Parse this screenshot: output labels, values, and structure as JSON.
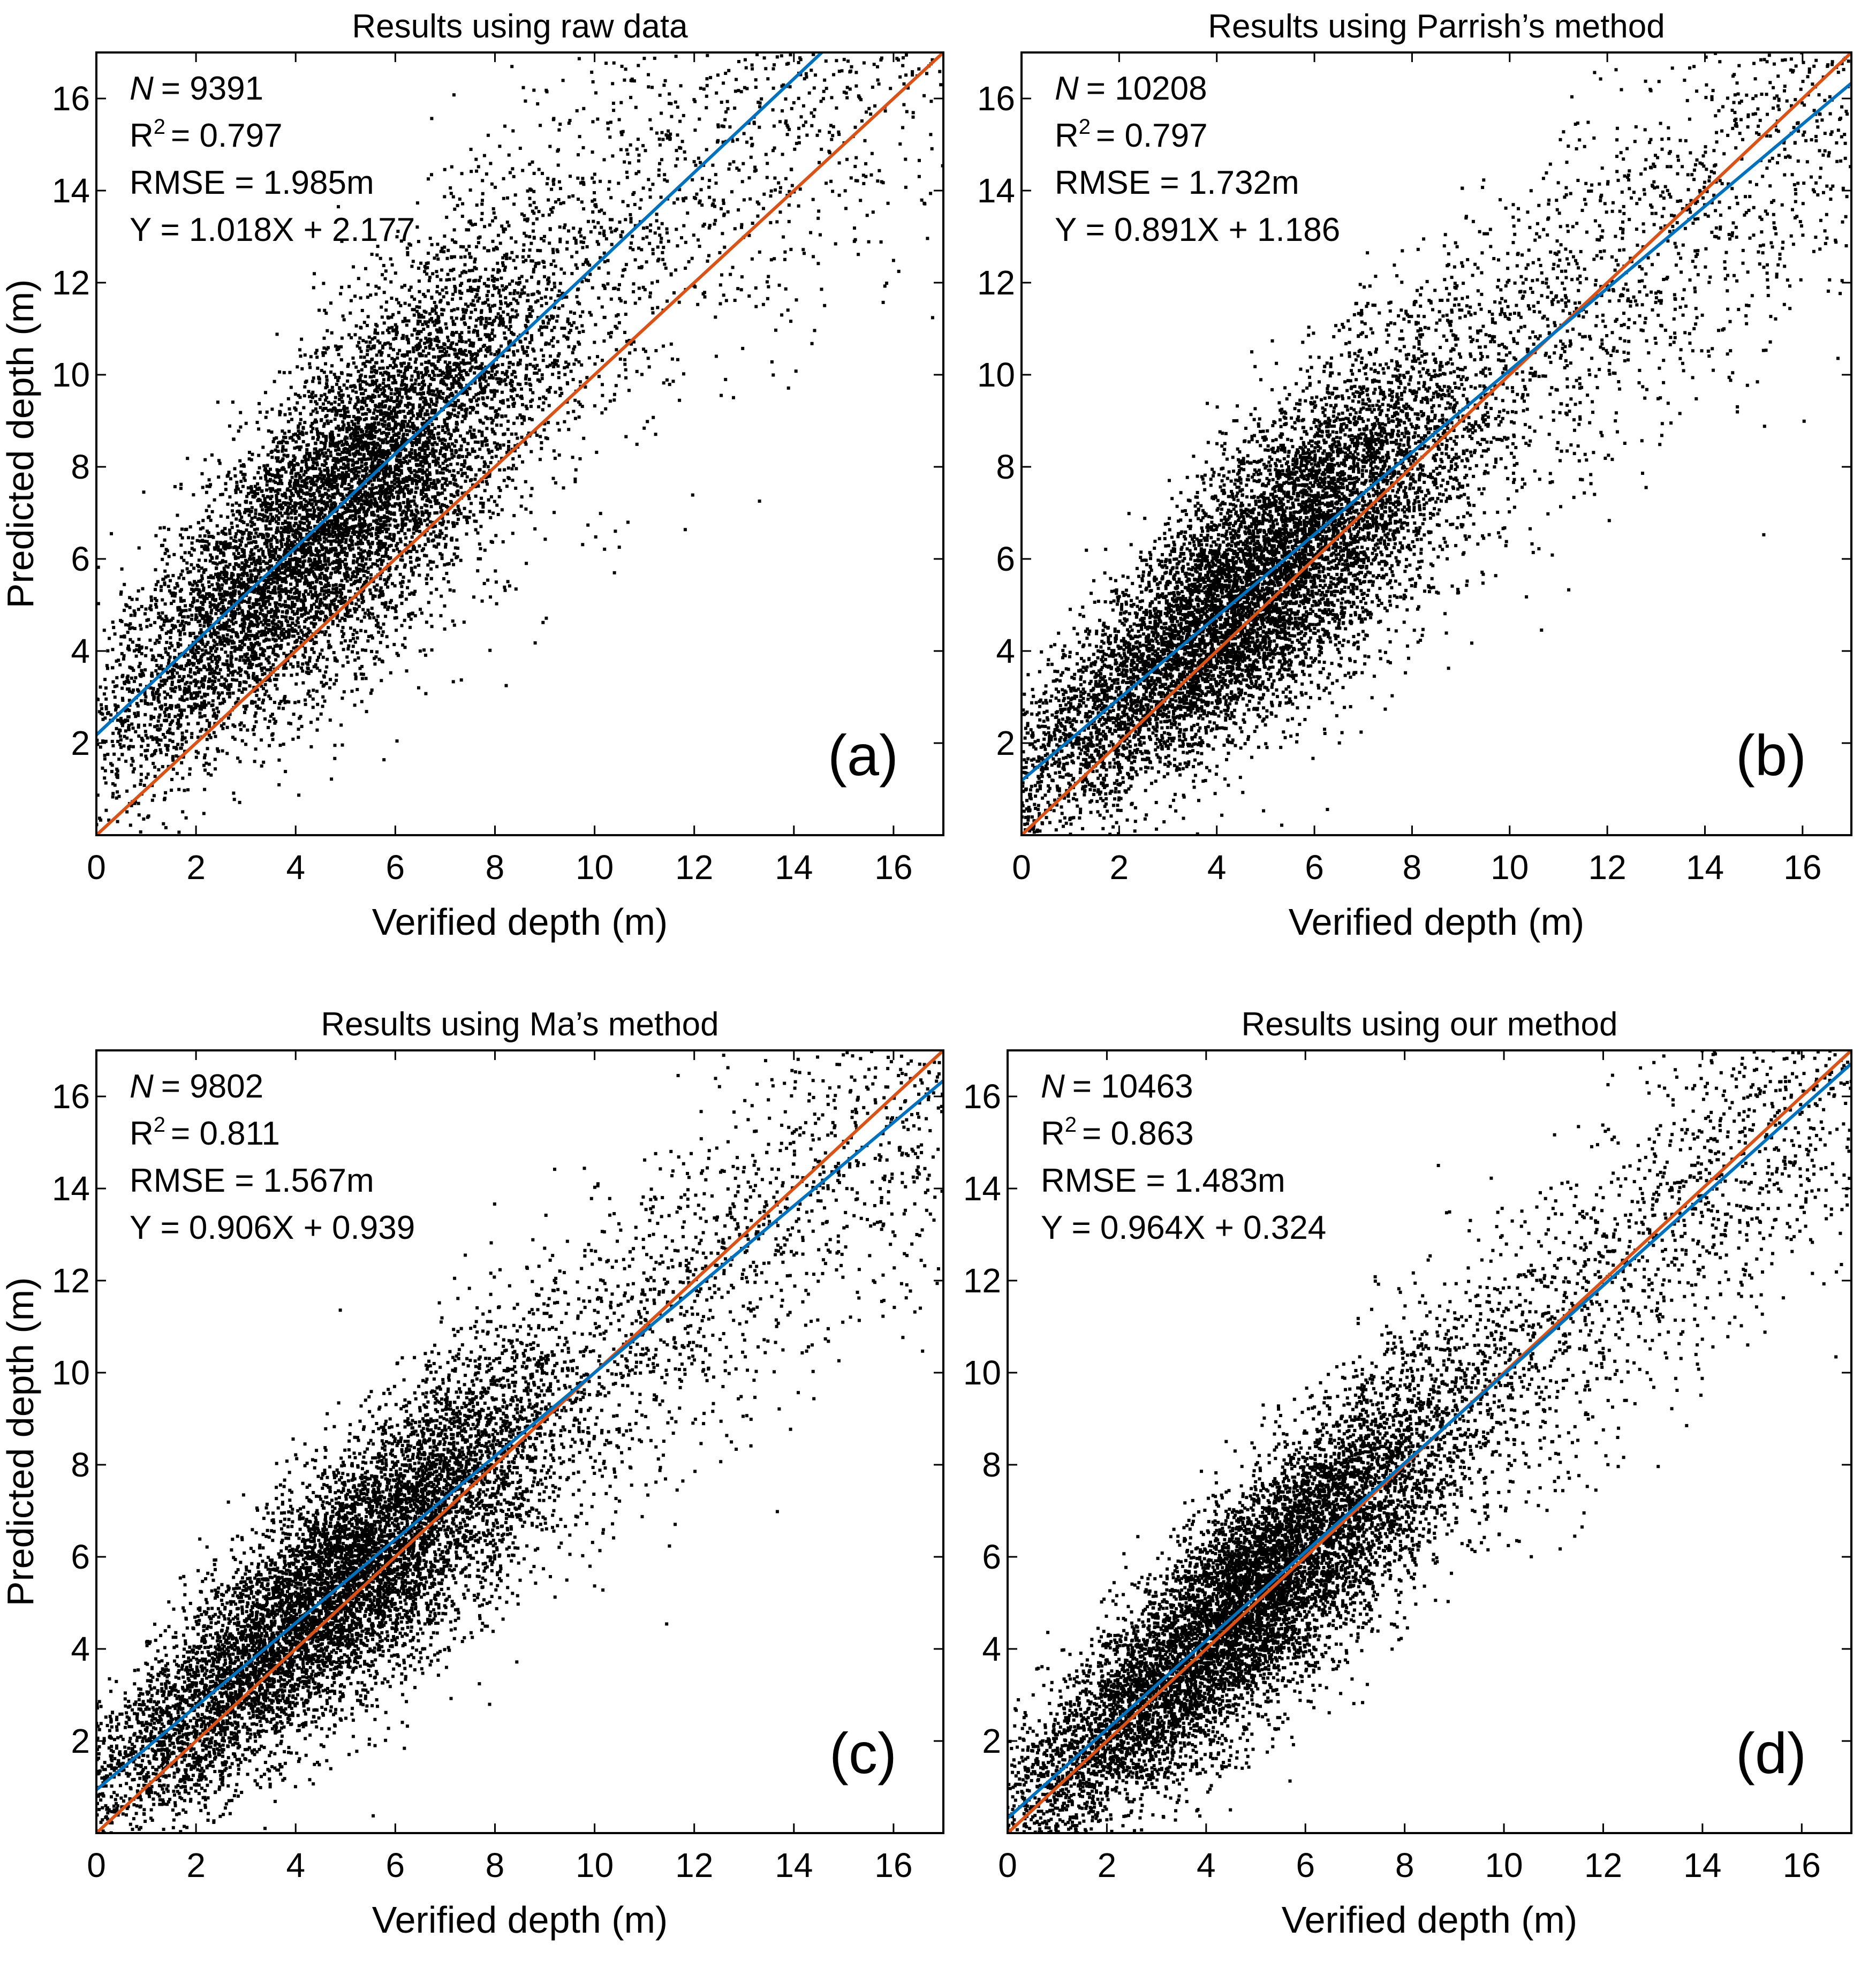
{
  "colors": {
    "fit_line": "#0072BD",
    "one_to_one_line": "#D95319",
    "points": "#000000",
    "axes": "#000000"
  },
  "chart_data": [
    {
      "id": "a",
      "type": "scatter",
      "title": "Results using raw data",
      "panel_label": "(a)",
      "xlabel": "Verified depth (m)",
      "ylabel": "Predicted depth (m)",
      "xlim": [
        0,
        17
      ],
      "ylim": [
        0,
        17
      ],
      "xticks": [
        "0",
        "2",
        "4",
        "6",
        "8",
        "10",
        "12",
        "14",
        "16"
      ],
      "yticks": [
        "2",
        "4",
        "6",
        "8",
        "10",
        "12",
        "14",
        "16"
      ],
      "stats": {
        "n_label": "N",
        "n_value": "= 9391",
        "r2_label": "R",
        "r2_exp": "2",
        "r2_value": "= 0.797",
        "rmse": "RMSE = 1.985m",
        "equation": "Y = 1.018X + 2.177"
      },
      "fit": {
        "slope": 1.018,
        "intercept": 2.177
      },
      "reference": {
        "slope": 1,
        "intercept": 0
      },
      "n_points": 9391,
      "scatter": {
        "slope": 1.018,
        "intercept": 2.177,
        "spread": 2.0
      }
    },
    {
      "id": "b",
      "type": "scatter",
      "title": "Results using Parrish’s method",
      "panel_label": "(b)",
      "xlabel": "Verified depth (m)",
      "ylabel": "",
      "xlim": [
        0,
        17
      ],
      "ylim": [
        0,
        17
      ],
      "xticks": [
        "0",
        "2",
        "4",
        "6",
        "8",
        "10",
        "12",
        "14",
        "16"
      ],
      "yticks": [
        "2",
        "4",
        "6",
        "8",
        "10",
        "12",
        "14",
        "16"
      ],
      "stats": {
        "n_label": "N",
        "n_value": "= 10208",
        "r2_label": "R",
        "r2_exp": "2",
        "r2_value": "= 0.797",
        "rmse": "RMSE = 1.732m",
        "equation": "Y = 0.891X + 1.186"
      },
      "fit": {
        "slope": 0.891,
        "intercept": 1.186
      },
      "reference": {
        "slope": 1,
        "intercept": 0
      },
      "n_points": 10208,
      "scatter": {
        "slope": 0.891,
        "intercept": 1.186,
        "spread": 1.7
      }
    },
    {
      "id": "c",
      "type": "scatter",
      "title": "Results using Ma’s method",
      "panel_label": "(c)",
      "xlabel": "Verified depth (m)",
      "ylabel": "Predicted depth (m)",
      "xlim": [
        0,
        17
      ],
      "ylim": [
        0,
        17
      ],
      "xticks": [
        "0",
        "2",
        "4",
        "6",
        "8",
        "10",
        "12",
        "14",
        "16"
      ],
      "yticks": [
        "2",
        "4",
        "6",
        "8",
        "10",
        "12",
        "14",
        "16"
      ],
      "stats": {
        "n_label": "N",
        "n_value": "= 9802",
        "r2_label": "R",
        "r2_exp": "2",
        "r2_value": "= 0.811",
        "rmse": "RMSE = 1.567m",
        "equation": "Y = 0.906X + 0.939"
      },
      "fit": {
        "slope": 0.906,
        "intercept": 0.939
      },
      "reference": {
        "slope": 1,
        "intercept": 0
      },
      "n_points": 9802,
      "scatter": {
        "slope": 0.906,
        "intercept": 0.939,
        "spread": 1.55
      }
    },
    {
      "id": "d",
      "type": "scatter",
      "title": "Results using our method",
      "panel_label": "(d)",
      "xlabel": "Verified depth (m)",
      "ylabel": "",
      "xlim": [
        0,
        17
      ],
      "ylim": [
        0,
        17
      ],
      "xticks": [
        "0",
        "2",
        "4",
        "6",
        "8",
        "10",
        "12",
        "14",
        "16"
      ],
      "yticks": [
        "2",
        "4",
        "6",
        "8",
        "10",
        "12",
        "14",
        "16"
      ],
      "stats": {
        "n_label": "N",
        "n_value": "= 10463",
        "r2_label": "R",
        "r2_exp": "2",
        "r2_value": "= 0.863",
        "rmse": "RMSE = 1.483m",
        "equation": "Y = 0.964X + 0.324"
      },
      "fit": {
        "slope": 0.964,
        "intercept": 0.324
      },
      "reference": {
        "slope": 1,
        "intercept": 0
      },
      "n_points": 10463,
      "scatter": {
        "slope": 0.964,
        "intercept": 0.324,
        "spread": 1.45
      }
    }
  ]
}
